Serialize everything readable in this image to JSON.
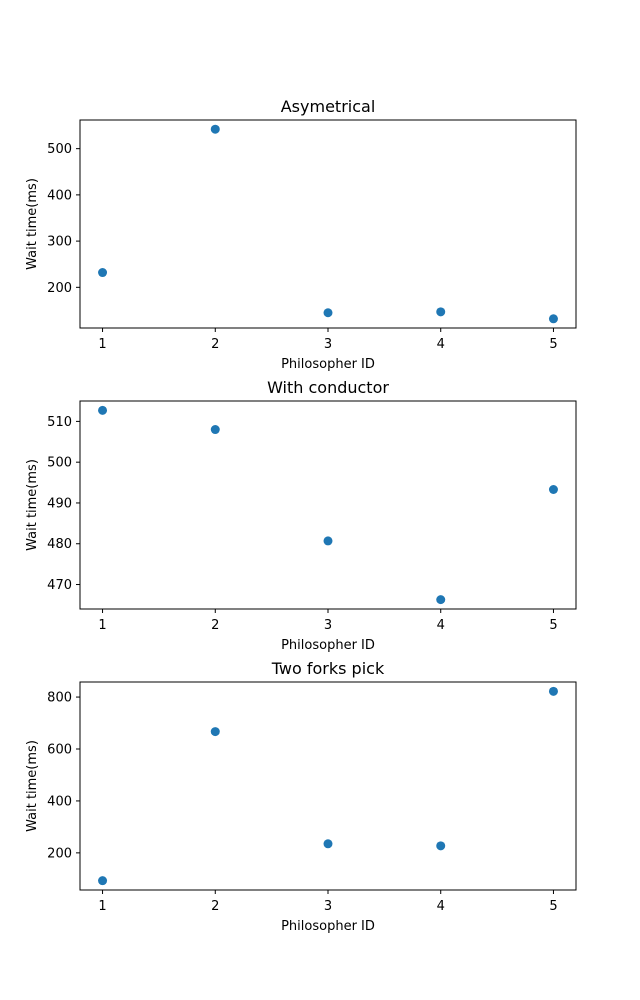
{
  "chart_data": [
    {
      "type": "scatter",
      "title": "Asymetrical",
      "xlabel": "Philosopher ID",
      "ylabel": "Wait time(ms)",
      "x": [
        1,
        2,
        3,
        4,
        5
      ],
      "y": [
        232,
        542,
        145,
        147,
        132
      ],
      "xlim": [
        0.8,
        5.2
      ],
      "ylim": [
        112,
        562
      ],
      "xticks": [
        1,
        2,
        3,
        4,
        5
      ],
      "yticks": [
        200,
        300,
        400,
        500
      ],
      "color": "#1f77b4",
      "grid": false
    },
    {
      "type": "scatter",
      "title": "With conductor",
      "xlabel": "Philosopher ID",
      "ylabel": "Wait time(ms)",
      "x": [
        1,
        2,
        3,
        4,
        5
      ],
      "y": [
        512.7,
        508,
        480.7,
        466.3,
        493.3
      ],
      "xlim": [
        0.8,
        5.2
      ],
      "ylim": [
        464,
        515
      ],
      "xticks": [
        1,
        2,
        3,
        4,
        5
      ],
      "yticks": [
        470,
        480,
        490,
        500,
        510
      ],
      "color": "#1f77b4",
      "grid": false
    },
    {
      "type": "scatter",
      "title": "Two forks pick",
      "xlabel": "Philosopher ID",
      "ylabel": "Wait time(ms)",
      "x": [
        1,
        2,
        3,
        4,
        5
      ],
      "y": [
        93,
        667,
        235,
        227,
        822
      ],
      "xlim": [
        0.8,
        5.2
      ],
      "ylim": [
        57,
        858
      ],
      "xticks": [
        1,
        2,
        3,
        4,
        5
      ],
      "yticks": [
        200,
        400,
        600,
        800
      ],
      "color": "#1f77b4",
      "grid": false
    }
  ]
}
